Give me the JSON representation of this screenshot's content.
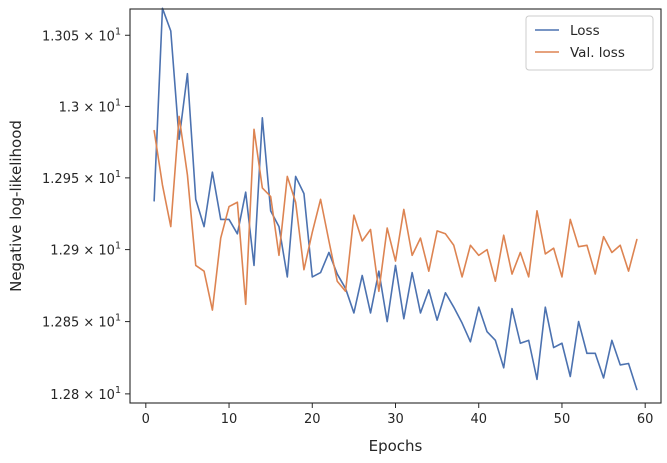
{
  "chart_data": {
    "type": "line",
    "xlabel": "Epochs",
    "ylabel": "Negative log-likelihood",
    "xlim": [
      -1.9,
      61.9
    ],
    "ylim": [
      12.7937,
      13.0685
    ],
    "y_scale": "log",
    "x_ticks": [
      {
        "value": 0,
        "label": "0"
      },
      {
        "value": 10,
        "label": "10"
      },
      {
        "value": 20,
        "label": "20"
      },
      {
        "value": 30,
        "label": "30"
      },
      {
        "value": 40,
        "label": "40"
      },
      {
        "value": 50,
        "label": "50"
      },
      {
        "value": 60,
        "label": "60"
      }
    ],
    "y_ticks": [
      {
        "value": 12.8,
        "mantissa": "1.28",
        "exponent": "1"
      },
      {
        "value": 12.85,
        "mantissa": "1.285",
        "exponent": "1"
      },
      {
        "value": 12.9,
        "mantissa": "1.29",
        "exponent": "1"
      },
      {
        "value": 12.95,
        "mantissa": "1.295",
        "exponent": "1"
      },
      {
        "value": 13.0,
        "mantissa": "1.3",
        "exponent": "1"
      },
      {
        "value": 13.05,
        "mantissa": "1.305",
        "exponent": "1"
      }
    ],
    "grid": false,
    "legend_position": "top-right",
    "series": [
      {
        "name": "Loss",
        "color": "#4c72b0",
        "x": [
          1,
          2,
          3,
          4,
          5,
          6,
          7,
          8,
          9,
          10,
          11,
          12,
          13,
          14,
          15,
          16,
          17,
          18,
          19,
          20,
          21,
          22,
          23,
          24,
          25,
          26,
          27,
          28,
          29,
          30,
          31,
          32,
          33,
          34,
          35,
          36,
          37,
          38,
          39,
          40,
          41,
          42,
          43,
          44,
          45,
          46,
          47,
          48,
          49,
          50,
          51,
          52,
          53,
          54,
          55,
          56,
          57,
          58,
          59
        ],
        "y": [
          12.934,
          13.069,
          13.053,
          12.977,
          13.023,
          12.935,
          12.916,
          12.954,
          12.921,
          12.921,
          12.911,
          12.94,
          12.889,
          12.992,
          12.927,
          12.916,
          12.881,
          12.951,
          12.939,
          12.881,
          12.884,
          12.898,
          12.883,
          12.873,
          12.856,
          12.882,
          12.856,
          12.885,
          12.85,
          12.889,
          12.852,
          12.884,
          12.856,
          12.872,
          12.851,
          12.87,
          12.86,
          12.849,
          12.836,
          12.86,
          12.843,
          12.837,
          12.818,
          12.859,
          12.835,
          12.837,
          12.81,
          12.86,
          12.832,
          12.835,
          12.812,
          12.85,
          12.828,
          12.828,
          12.811,
          12.837,
          12.82,
          12.821,
          12.803
        ]
      },
      {
        "name": "Val. loss",
        "color": "#dd8452",
        "x": [
          1,
          2,
          3,
          4,
          5,
          6,
          7,
          8,
          9,
          10,
          11,
          12,
          13,
          14,
          15,
          16,
          17,
          18,
          19,
          20,
          21,
          22,
          23,
          24,
          25,
          26,
          27,
          28,
          29,
          30,
          31,
          32,
          33,
          34,
          35,
          36,
          37,
          38,
          39,
          40,
          41,
          42,
          43,
          44,
          45,
          46,
          47,
          48,
          49,
          50,
          51,
          52,
          53,
          54,
          55,
          56,
          57,
          58,
          59
        ],
        "y": [
          12.983,
          12.945,
          12.916,
          12.993,
          12.952,
          12.889,
          12.885,
          12.858,
          12.908,
          12.93,
          12.933,
          12.862,
          12.984,
          12.943,
          12.937,
          12.896,
          12.951,
          12.933,
          12.886,
          12.912,
          12.935,
          12.906,
          12.878,
          12.871,
          12.924,
          12.906,
          12.914,
          12.871,
          12.915,
          12.892,
          12.928,
          12.896,
          12.908,
          12.885,
          12.913,
          12.911,
          12.903,
          12.881,
          12.903,
          12.896,
          12.9,
          12.878,
          12.91,
          12.883,
          12.898,
          12.881,
          12.927,
          12.897,
          12.901,
          12.881,
          12.921,
          12.902,
          12.903,
          12.883,
          12.909,
          12.898,
          12.903,
          12.885,
          12.907
        ]
      }
    ]
  }
}
